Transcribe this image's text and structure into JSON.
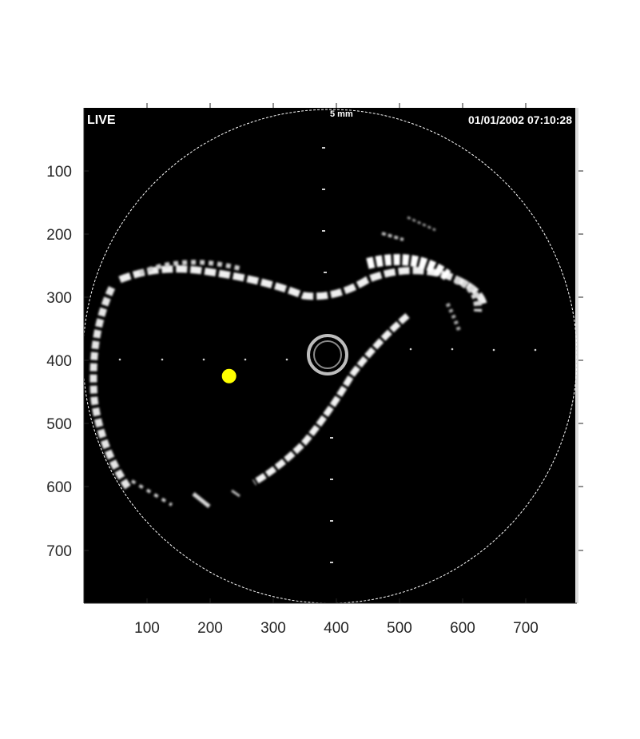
{
  "overlay": {
    "mode_label": "LIVE",
    "scale_label": "5 mm",
    "timestamp": "01/01/2002 07:10:28"
  },
  "axes": {
    "x_ticks": [
      "100",
      "200",
      "300",
      "400",
      "500",
      "600",
      "700"
    ],
    "y_ticks": [
      "100",
      "200",
      "300",
      "400",
      "500",
      "600",
      "700"
    ]
  },
  "marker": {
    "color": "#ffff00",
    "x": 230,
    "y": 425
  },
  "colors": {
    "background": "#000000",
    "echo": "#ffffff",
    "frame": "#ffffff"
  }
}
